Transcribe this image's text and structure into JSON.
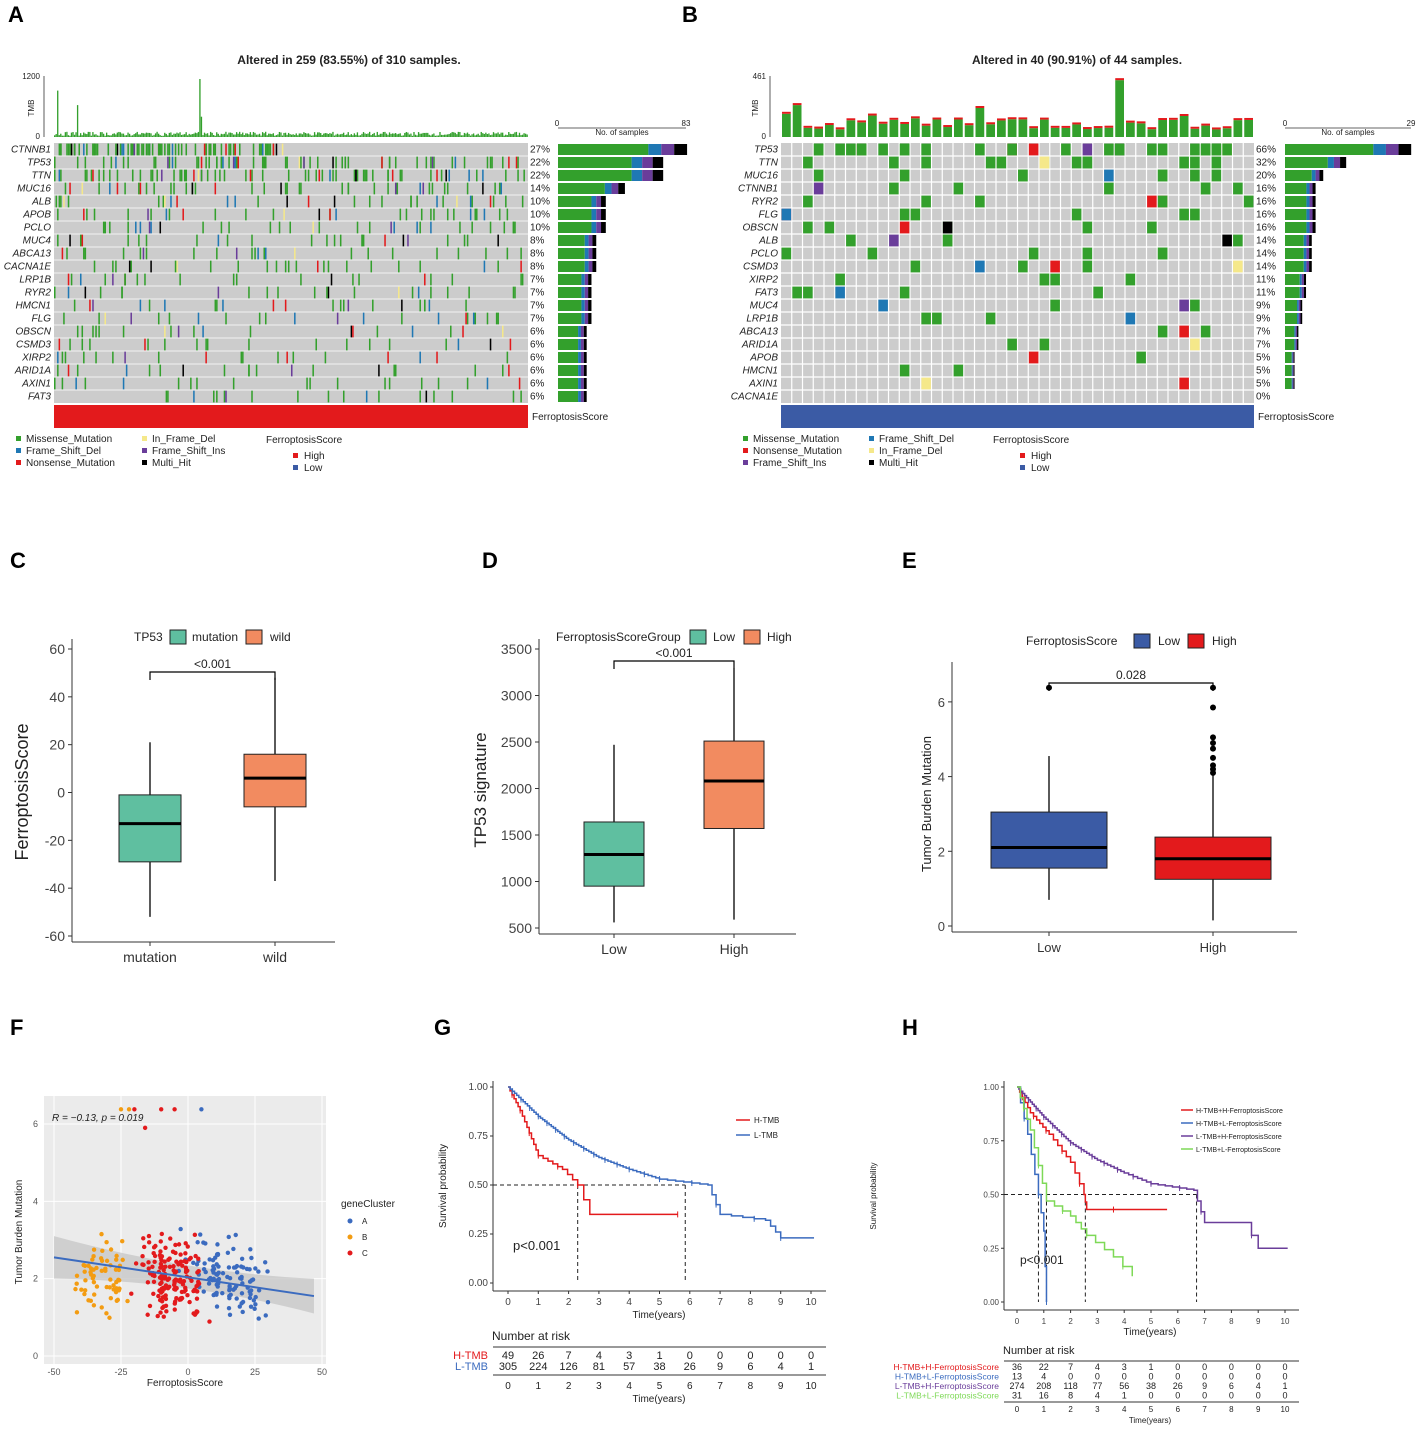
{
  "colors": {
    "missense": "#33a02c",
    "frameshift_del": "#1f78b4",
    "nonsense": "#e31a1c",
    "inframe_del": "#f5e88a",
    "frameshift_ins": "#6a3d9a",
    "multi_hit": "#000000",
    "high": "#e31a1c",
    "low": "#3b5ba5",
    "teal": "#5fbfa0",
    "salmon": "#f28b60",
    "grey": "#cccccc"
  },
  "panels": {
    "A": "A",
    "B": "B",
    "C": "C",
    "D": "D",
    "E": "E",
    "F": "F",
    "G": "G",
    "H": "H"
  },
  "oncoA": {
    "title": "Altered in 259 (83.55%) of 310 samples.",
    "tmb_label": "TMB",
    "tmb_max": "1200",
    "tmb_min": "0",
    "nsamp_label": "No. of samples",
    "nsamp_min": "0",
    "nsamp_max": "83",
    "score_label": "FerroptosisScore",
    "genes": [
      {
        "name": "CTNNB1",
        "pct": "27%",
        "v": 27
      },
      {
        "name": "TP53",
        "pct": "22%",
        "v": 22
      },
      {
        "name": "TTN",
        "pct": "22%",
        "v": 22
      },
      {
        "name": "MUC16",
        "pct": "14%",
        "v": 14
      },
      {
        "name": "ALB",
        "pct": "10%",
        "v": 10
      },
      {
        "name": "APOB",
        "pct": "10%",
        "v": 10
      },
      {
        "name": "PCLO",
        "pct": "10%",
        "v": 10
      },
      {
        "name": "MUC4",
        "pct": "8%",
        "v": 8
      },
      {
        "name": "ABCA13",
        "pct": "8%",
        "v": 8
      },
      {
        "name": "CACNA1E",
        "pct": "8%",
        "v": 8
      },
      {
        "name": "LRP1B",
        "pct": "7%",
        "v": 7
      },
      {
        "name": "RYR2",
        "pct": "7%",
        "v": 7
      },
      {
        "name": "HMCN1",
        "pct": "7%",
        "v": 7
      },
      {
        "name": "FLG",
        "pct": "7%",
        "v": 7
      },
      {
        "name": "OBSCN",
        "pct": "6%",
        "v": 6
      },
      {
        "name": "CSMD3",
        "pct": "6%",
        "v": 6
      },
      {
        "name": "XIRP2",
        "pct": "6%",
        "v": 6
      },
      {
        "name": "ARID1A",
        "pct": "6%",
        "v": 6
      },
      {
        "name": "AXIN1",
        "pct": "6%",
        "v": 6
      },
      {
        "name": "FAT3",
        "pct": "6%",
        "v": 6
      }
    ],
    "legend": [
      "Missense_Mutation",
      "Frame_Shift_Del",
      "Nonsense_Mutation",
      "In_Frame_Del",
      "Frame_Shift_Ins",
      "Multi_Hit"
    ],
    "legend_title": "FerroptosisScore",
    "legend_high": "High",
    "legend_low": "Low"
  },
  "oncoB": {
    "title": "Altered in 40 (90.91%) of 44 samples.",
    "tmb_label": "TMB",
    "tmb_max": "461",
    "tmb_min": "0",
    "nsamp_label": "No. of samples",
    "nsamp_min": "0",
    "nsamp_max": "29",
    "score_label": "FerroptosisScore",
    "genes": [
      {
        "name": "TP53",
        "pct": "66%",
        "v": 66
      },
      {
        "name": "TTN",
        "pct": "32%",
        "v": 32
      },
      {
        "name": "MUC16",
        "pct": "20%",
        "v": 20
      },
      {
        "name": "CTNNB1",
        "pct": "16%",
        "v": 16
      },
      {
        "name": "RYR2",
        "pct": "16%",
        "v": 16
      },
      {
        "name": "FLG",
        "pct": "16%",
        "v": 16
      },
      {
        "name": "OBSCN",
        "pct": "16%",
        "v": 16
      },
      {
        "name": "ALB",
        "pct": "14%",
        "v": 14
      },
      {
        "name": "PCLO",
        "pct": "14%",
        "v": 14
      },
      {
        "name": "CSMD3",
        "pct": "14%",
        "v": 14
      },
      {
        "name": "XIRP2",
        "pct": "11%",
        "v": 11
      },
      {
        "name": "FAT3",
        "pct": "11%",
        "v": 11
      },
      {
        "name": "MUC4",
        "pct": "9%",
        "v": 9
      },
      {
        "name": "LRP1B",
        "pct": "9%",
        "v": 9
      },
      {
        "name": "ABCA13",
        "pct": "7%",
        "v": 7
      },
      {
        "name": "ARID1A",
        "pct": "7%",
        "v": 7
      },
      {
        "name": "APOB",
        "pct": "5%",
        "v": 5
      },
      {
        "name": "HMCN1",
        "pct": "5%",
        "v": 5
      },
      {
        "name": "AXIN1",
        "pct": "5%",
        "v": 5
      },
      {
        "name": "CACNA1E",
        "pct": "0%",
        "v": 0
      }
    ],
    "legend": [
      "Missense_Mutation",
      "Nonsense_Mutation",
      "Frame_Shift_Ins",
      "Frame_Shift_Del",
      "In_Frame_Del",
      "Multi_Hit"
    ],
    "legend_title": "FerroptosisScore",
    "legend_high": "High",
    "legend_low": "Low"
  },
  "chart_data": [
    {
      "panel": "C",
      "type": "box",
      "legend_title": "TP53",
      "groups": [
        "mutation",
        "wild"
      ],
      "ylabel": "FerroptosisScore",
      "ylim": [
        -60,
        60
      ],
      "yticks": [
        "60",
        "40",
        "20",
        "0",
        "-20",
        "-40",
        "-60"
      ],
      "boxes": [
        {
          "name": "mutation",
          "min": -52,
          "q1": -29,
          "median": -13,
          "q3": -1,
          "max": 21
        },
        {
          "name": "wild",
          "min": -37,
          "q1": -6,
          "median": 6,
          "q3": 16,
          "max": 48
        }
      ],
      "pvalue": "<0.001"
    },
    {
      "panel": "D",
      "type": "box",
      "legend_title": "FerroptosisScoreGroup",
      "groups": [
        "Low",
        "High"
      ],
      "ylabel": "TP53  signature",
      "ylim": [
        500,
        3500
      ],
      "yticks": [
        "3500",
        "3000",
        "2500",
        "2000",
        "1500",
        "1000",
        "500"
      ],
      "boxes": [
        {
          "name": "Low",
          "min": 560,
          "q1": 950,
          "median": 1290,
          "q3": 1640,
          "max": 2470
        },
        {
          "name": "High",
          "min": 590,
          "q1": 1570,
          "median": 2080,
          "q3": 2510,
          "max": 3290
        }
      ],
      "pvalue": "<0.001"
    },
    {
      "panel": "E",
      "type": "box",
      "legend_title": "FerroptosisScore",
      "groups": [
        "Low",
        "High"
      ],
      "ylabel": "Tumor Burden Mutation",
      "ylim": [
        0,
        6.8
      ],
      "yticks": [
        "6",
        "4",
        "2",
        "0"
      ],
      "boxes": [
        {
          "name": "Low",
          "min": 0.7,
          "q1": 1.55,
          "median": 2.1,
          "q3": 3.05,
          "max": 4.55,
          "outliers": [
            6.38
          ]
        },
        {
          "name": "High",
          "min": 0.15,
          "q1": 1.25,
          "median": 1.8,
          "q3": 2.38,
          "max": 4.05,
          "outliers": [
            4.1,
            4.2,
            4.3,
            4.5,
            4.75,
            4.9,
            5.05,
            5.85,
            6.38
          ]
        }
      ],
      "pvalue": "0.028"
    },
    {
      "panel": "F",
      "type": "scatter",
      "xlabel": "FerroptosisScore",
      "ylabel": "Tumor Burden Mutation",
      "annotation": "R = −0.13, p = 0.019",
      "legend_title": "geneCluster",
      "clusters": [
        "A",
        "B",
        "C"
      ],
      "xlim": [
        -52,
        50
      ],
      "ylim": [
        0,
        6.6
      ],
      "xticks": [
        "-50",
        "-25",
        "0",
        "25",
        "50"
      ],
      "yticks": [
        "6",
        "4",
        "2",
        "0"
      ],
      "fit": {
        "x0": -50,
        "y0": 2.55,
        "x1": 47,
        "y1": 1.55
      }
    },
    {
      "panel": "G",
      "type": "km",
      "ylabel": "Survival probability",
      "xlabel": "Time(years)",
      "pvalue": "p<0.001",
      "groups": [
        "H-TMB",
        "L-TMB"
      ],
      "risk_title": "Number at risk",
      "times": [
        "0",
        "1",
        "2",
        "3",
        "4",
        "5",
        "6",
        "7",
        "8",
        "9",
        "10"
      ],
      "risk": [
        {
          "name": "H-TMB",
          "values": [
            "49",
            "26",
            "7",
            "4",
            "3",
            "1",
            "0",
            "0",
            "0",
            "0",
            "0"
          ]
        },
        {
          "name": "L-TMB",
          "values": [
            "305",
            "224",
            "126",
            "81",
            "57",
            "38",
            "26",
            "9",
            "6",
            "4",
            "1"
          ]
        }
      ],
      "yticks": [
        "1.00",
        "0.75",
        "0.50",
        "0.25",
        "0.00"
      ]
    },
    {
      "panel": "H",
      "type": "km",
      "ylabel": "Survival probability",
      "xlabel": "Time(years)",
      "pvalue": "p<0.001",
      "groups": [
        "H-TMB+H-FerroptosisScore",
        "H-TMB+L-FerroptosisScore",
        "L-TMB+H-FerroptosisScore",
        "L-TMB+L-FerroptosisScore"
      ],
      "risk_title": "Number at risk",
      "times": [
        "0",
        "1",
        "2",
        "3",
        "4",
        "5",
        "6",
        "7",
        "8",
        "9",
        "10"
      ],
      "risk": [
        {
          "name": "H-TMB+H-FerroptosisScore",
          "values": [
            "36",
            "22",
            "7",
            "4",
            "3",
            "1",
            "0",
            "0",
            "0",
            "0",
            "0"
          ]
        },
        {
          "name": "H-TMB+L-FerroptosisScore",
          "values": [
            "13",
            "4",
            "0",
            "0",
            "0",
            "0",
            "0",
            "0",
            "0",
            "0",
            "0"
          ]
        },
        {
          "name": "L-TMB+H-FerroptosisScore",
          "values": [
            "274",
            "208",
            "118",
            "77",
            "56",
            "38",
            "26",
            "9",
            "6",
            "4",
            "1"
          ]
        },
        {
          "name": "L-TMB+L-FerroptosisScore",
          "values": [
            "31",
            "16",
            "8",
            "4",
            "1",
            "0",
            "0",
            "0",
            "0",
            "0",
            "0"
          ]
        }
      ],
      "yticks": [
        "1.00",
        "0.75",
        "0.50",
        "0.25",
        "0.00"
      ]
    }
  ]
}
